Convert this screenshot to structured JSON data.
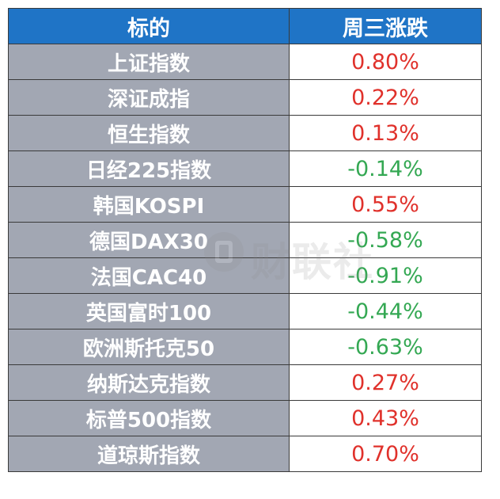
{
  "table": {
    "headers": {
      "name": "标的",
      "change": "周三涨跌"
    },
    "rows": [
      {
        "name": "上证指数",
        "change": "0.80%"
      },
      {
        "name": "深证成指",
        "change": "0.22%"
      },
      {
        "name": "恒生指数",
        "change": "0.13%"
      },
      {
        "name": "日经225指数",
        "change": "-0.14%"
      },
      {
        "name": "韩国KOSPI",
        "change": "0.55%"
      },
      {
        "name": "德国DAX30",
        "change": "-0.58%"
      },
      {
        "name": "法国CAC40",
        "change": "-0.91%"
      },
      {
        "name": "英国富时100",
        "change": "-0.44%"
      },
      {
        "name": "欧洲斯托克50",
        "change": "-0.63%"
      },
      {
        "name": "纳斯达克指数",
        "change": "0.27%"
      },
      {
        "name": "标普500指数",
        "change": "0.43%"
      },
      {
        "name": "道琼斯指数",
        "change": "0.70%"
      }
    ]
  },
  "colors": {
    "header_bg": "#1f74c6",
    "name_bg": "#a2a7b3",
    "up": "#e0312b",
    "down": "#34a853"
  },
  "watermark": {
    "logo": "财联社"
  }
}
